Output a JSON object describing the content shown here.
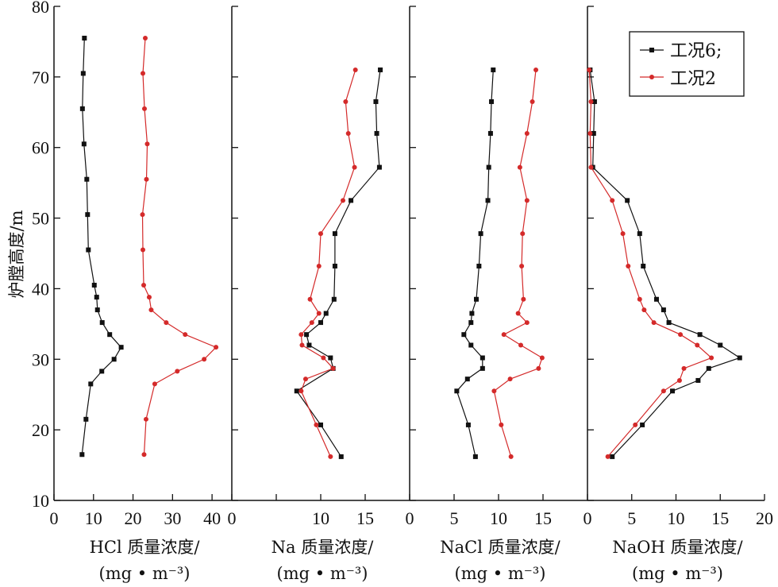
{
  "chart_data": {
    "type": "line",
    "ylabel": "炉膛高度/m",
    "ylim": [
      10,
      80
    ],
    "yticks": [
      10,
      20,
      30,
      40,
      50,
      60,
      70,
      80
    ],
    "legend": {
      "position": "top-right",
      "entries": [
        {
          "label": "工况6;",
          "color": "#111111",
          "marker": "square"
        },
        {
          "label": "工况2",
          "color": "#d42a2a",
          "marker": "circle"
        }
      ]
    },
    "panels": [
      {
        "xlabel_line1": "HCl 质量浓度/",
        "xlabel_line2": "(mg • m⁻³)",
        "xlim": [
          0,
          45
        ],
        "xticks": [
          0,
          10,
          20,
          30,
          40
        ],
        "xtick_labels": [
          "0",
          "10",
          "20",
          "30",
          "40"
        ],
        "series": [
          {
            "name": "工况6;",
            "points": [
              [
                7.7,
                75.5
              ],
              [
                7.4,
                70.5
              ],
              [
                7.2,
                65.5
              ],
              [
                7.6,
                60.5
              ],
              [
                8.3,
                55.5
              ],
              [
                8.5,
                50.5
              ],
              [
                8.7,
                45.5
              ],
              [
                10.2,
                40.5
              ],
              [
                10.8,
                38.8
              ],
              [
                11.0,
                37.0
              ],
              [
                12.2,
                35.2
              ],
              [
                14.1,
                33.5
              ],
              [
                17.0,
                31.7
              ],
              [
                15.2,
                30.0
              ],
              [
                12.1,
                28.3
              ],
              [
                9.3,
                26.5
              ],
              [
                8.1,
                21.5
              ],
              [
                7.1,
                16.5
              ]
            ]
          },
          {
            "name": "工况2",
            "points": [
              [
                23.1,
                75.5
              ],
              [
                22.5,
                70.5
              ],
              [
                22.9,
                65.5
              ],
              [
                23.6,
                60.5
              ],
              [
                23.4,
                55.5
              ],
              [
                22.4,
                50.5
              ],
              [
                22.5,
                45.5
              ],
              [
                22.7,
                40.5
              ],
              [
                24.1,
                38.8
              ],
              [
                24.6,
                37.0
              ],
              [
                28.4,
                35.2
              ],
              [
                33.2,
                33.5
              ],
              [
                41.0,
                31.7
              ],
              [
                38.0,
                30.0
              ],
              [
                31.2,
                28.3
              ],
              [
                25.5,
                26.5
              ],
              [
                23.3,
                21.5
              ],
              [
                22.8,
                16.5
              ]
            ]
          }
        ]
      },
      {
        "xlabel_line1": "Na 质量浓度/",
        "xlabel_line2": "(mg • m⁻³)",
        "xlim": [
          0,
          20
        ],
        "xticks": [
          0,
          5,
          10,
          15
        ],
        "xtick_labels": [
          "0",
          "",
          "10",
          "15"
        ],
        "series": [
          {
            "name": "工况6;",
            "points": [
              [
                16.7,
                71.0
              ],
              [
                16.2,
                66.5
              ],
              [
                16.3,
                62.0
              ],
              [
                16.6,
                57.2
              ],
              [
                13.4,
                52.5
              ],
              [
                11.6,
                47.8
              ],
              [
                11.6,
                43.2
              ],
              [
                11.5,
                38.5
              ],
              [
                10.6,
                36.5
              ],
              [
                10.0,
                35.2
              ],
              [
                8.4,
                33.5
              ],
              [
                8.7,
                32.0
              ],
              [
                11.1,
                30.2
              ],
              [
                11.4,
                28.7
              ],
              [
                7.3,
                25.5
              ],
              [
                10.0,
                20.7
              ],
              [
                12.3,
                16.2
              ]
            ]
          },
          {
            "name": "工况2",
            "points": [
              [
                13.9,
                71.0
              ],
              [
                12.8,
                66.5
              ],
              [
                13.1,
                62.0
              ],
              [
                13.8,
                57.2
              ],
              [
                12.5,
                52.5
              ],
              [
                10.0,
                47.8
              ],
              [
                9.8,
                43.2
              ],
              [
                8.8,
                38.5
              ],
              [
                9.8,
                36.5
              ],
              [
                9.0,
                35.2
              ],
              [
                7.8,
                33.5
              ],
              [
                7.9,
                32.0
              ],
              [
                10.3,
                30.2
              ],
              [
                11.4,
                28.7
              ],
              [
                8.3,
                27.2
              ],
              [
                7.8,
                25.5
              ],
              [
                9.5,
                20.7
              ],
              [
                11.1,
                16.2
              ]
            ]
          }
        ]
      },
      {
        "xlabel_line1": "NaCl 质量浓度/",
        "xlabel_line2": "(mg • m⁻³)",
        "xlim": [
          0,
          20
        ],
        "xticks": [
          0,
          5,
          10,
          15
        ],
        "xtick_labels": [
          "0",
          "5",
          "10",
          "15"
        ],
        "series": [
          {
            "name": "工况6;",
            "points": [
              [
                9.4,
                71.0
              ],
              [
                9.2,
                66.5
              ],
              [
                9.1,
                62.0
              ],
              [
                8.9,
                57.2
              ],
              [
                8.8,
                52.5
              ],
              [
                8.0,
                47.8
              ],
              [
                7.8,
                43.2
              ],
              [
                7.5,
                38.5
              ],
              [
                7.0,
                36.5
              ],
              [
                6.9,
                35.2
              ],
              [
                6.1,
                33.5
              ],
              [
                6.9,
                32.0
              ],
              [
                8.2,
                30.2
              ],
              [
                8.2,
                28.7
              ],
              [
                6.5,
                27.2
              ],
              [
                5.3,
                25.5
              ],
              [
                6.6,
                20.7
              ],
              [
                7.4,
                16.2
              ]
            ]
          },
          {
            "name": "工况2",
            "points": [
              [
                14.2,
                71.0
              ],
              [
                13.8,
                66.5
              ],
              [
                13.2,
                62.0
              ],
              [
                12.4,
                57.2
              ],
              [
                13.2,
                52.5
              ],
              [
                12.7,
                47.8
              ],
              [
                12.6,
                43.2
              ],
              [
                12.8,
                38.5
              ],
              [
                12.2,
                36.5
              ],
              [
                13.2,
                35.2
              ],
              [
                10.6,
                33.5
              ],
              [
                12.5,
                32.0
              ],
              [
                14.9,
                30.2
              ],
              [
                14.5,
                28.7
              ],
              [
                11.3,
                27.2
              ],
              [
                9.5,
                25.5
              ],
              [
                10.3,
                20.7
              ],
              [
                11.4,
                16.2
              ]
            ]
          }
        ]
      },
      {
        "xlabel_line1": "NaOH 质量浓度/",
        "xlabel_line2": "(mg • m⁻³)",
        "xlim": [
          0,
          20
        ],
        "xticks": [
          0,
          5,
          10,
          15,
          20
        ],
        "xtick_labels": [
          "0",
          "5",
          "10",
          "15",
          "20"
        ],
        "series": [
          {
            "name": "工况6;",
            "points": [
              [
                0.3,
                71.0
              ],
              [
                0.8,
                66.5
              ],
              [
                0.7,
                62.0
              ],
              [
                0.6,
                57.2
              ],
              [
                4.5,
                52.5
              ],
              [
                5.9,
                47.8
              ],
              [
                6.3,
                43.2
              ],
              [
                7.8,
                38.5
              ],
              [
                8.6,
                37.0
              ],
              [
                9.2,
                35.2
              ],
              [
                12.7,
                33.5
              ],
              [
                15.0,
                32.0
              ],
              [
                17.2,
                30.2
              ],
              [
                13.7,
                28.7
              ],
              [
                12.5,
                27.0
              ],
              [
                9.6,
                25.5
              ],
              [
                6.2,
                20.7
              ],
              [
                2.8,
                16.2
              ]
            ]
          },
          {
            "name": "工况2",
            "points": [
              [
                0.2,
                71.0
              ],
              [
                0.4,
                66.5
              ],
              [
                0.3,
                62.0
              ],
              [
                0.4,
                57.2
              ],
              [
                2.8,
                52.5
              ],
              [
                4.0,
                47.8
              ],
              [
                4.6,
                43.2
              ],
              [
                5.9,
                38.5
              ],
              [
                6.4,
                37.0
              ],
              [
                7.5,
                35.2
              ],
              [
                10.5,
                33.5
              ],
              [
                12.4,
                32.0
              ],
              [
                14.0,
                30.2
              ],
              [
                10.9,
                28.7
              ],
              [
                10.4,
                27.0
              ],
              [
                8.6,
                25.5
              ],
              [
                5.4,
                20.7
              ],
              [
                2.3,
                16.2
              ]
            ]
          }
        ]
      }
    ]
  }
}
